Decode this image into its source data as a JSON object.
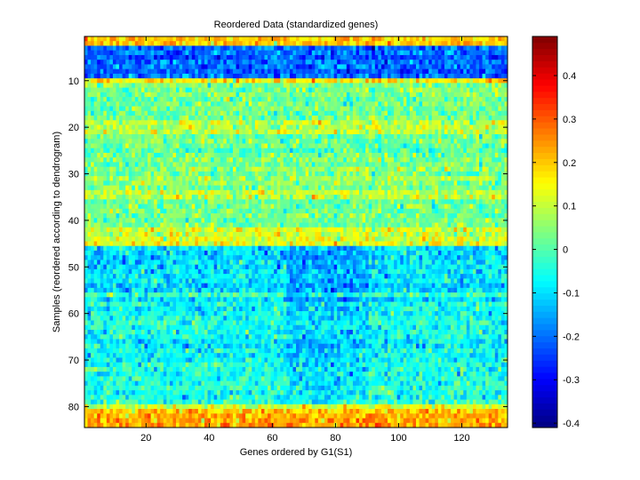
{
  "chart_data": {
    "type": "heatmap",
    "title": "Reordered Data (standardized genes)",
    "xlabel": "Genes ordered by G1(S1)",
    "ylabel": "Samples (reordered according to dendrogram)",
    "n_cols": 134,
    "n_rows": 84,
    "xlim": [
      0.5,
      134.5
    ],
    "ylim": [
      0.5,
      84.5
    ],
    "xticks": [
      20,
      40,
      60,
      80,
      100,
      120
    ],
    "yticks": [
      10,
      20,
      30,
      40,
      50,
      60,
      70,
      80
    ],
    "clim": [
      -0.41,
      0.49
    ],
    "colormap": "jet",
    "colorbar_ticks": [
      -0.4,
      -0.3,
      -0.2,
      -0.1,
      0,
      0.1,
      0.2,
      0.3,
      0.4
    ],
    "colorbar_tick_labels": [
      "-0.4",
      "-0.3",
      "-0.2",
      "-0.1",
      "0",
      "0.1",
      "0.2",
      "0.3",
      "0.4"
    ],
    "approx_row_means": [
      0.2,
      0.2,
      -0.2,
      -0.2,
      -0.22,
      -0.2,
      -0.2,
      -0.22,
      -0.2,
      0.17,
      0.03,
      0.03,
      0.04,
      0.02,
      0.03,
      0.03,
      0.02,
      0.04,
      0.1,
      0.09,
      0.1,
      0.02,
      0.03,
      0.02,
      -0.01,
      0.03,
      0.04,
      0.02,
      0.06,
      0.03,
      0.07,
      0.05,
      0.04,
      0.1,
      0.09,
      0.01,
      0.03,
      0.02,
      0.03,
      0.02,
      0.03,
      0.12,
      0.1,
      0.12,
      0.13,
      -0.09,
      -0.1,
      -0.12,
      -0.09,
      -0.1,
      -0.08,
      -0.09,
      -0.08,
      -0.12,
      -0.1,
      -0.02,
      -0.1,
      -0.06,
      -0.08,
      -0.06,
      -0.05,
      -0.04,
      -0.05,
      -0.06,
      -0.05,
      -0.07,
      -0.09,
      -0.06,
      -0.08,
      -0.06,
      -0.05,
      -0.04,
      -0.05,
      -0.04,
      -0.05,
      -0.03,
      -0.05,
      -0.05,
      -0.03,
      0.12,
      0.2,
      0.22,
      0.23,
      0.24
    ],
    "approx_noise_sd": 0.05,
    "approx_column_effects": [
      {
        "cols": [
          65,
          90
        ],
        "rows": [
          46,
          79
        ],
        "offset": -0.05
      }
    ]
  }
}
